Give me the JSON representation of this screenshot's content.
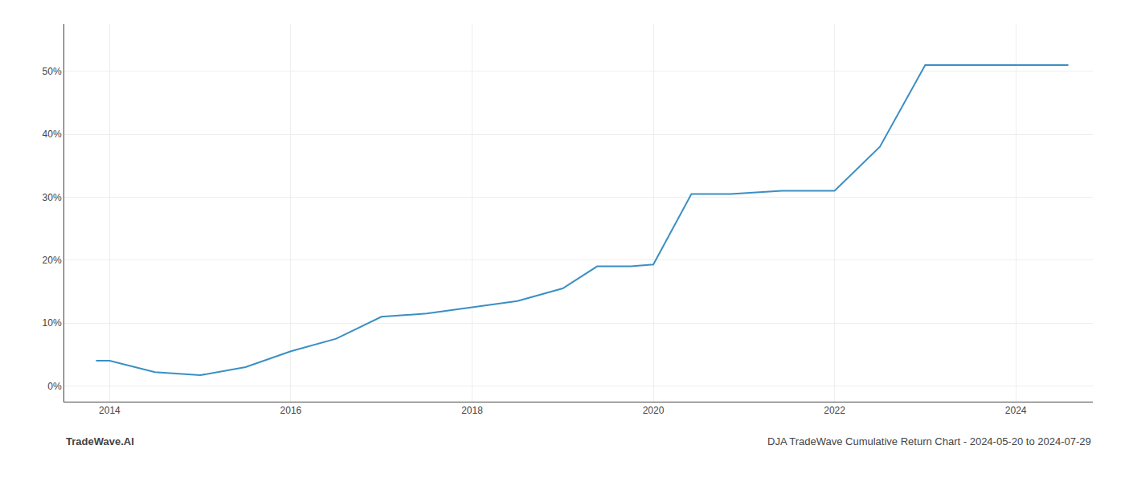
{
  "chart_data": {
    "type": "line",
    "x": [
      2013.85,
      2014.0,
      2014.5,
      2015.0,
      2015.5,
      2016.0,
      2016.5,
      2017.0,
      2017.5,
      2018.0,
      2018.5,
      2019.0,
      2019.38,
      2019.75,
      2020.0,
      2020.42,
      2020.85,
      2021.42,
      2022.0,
      2022.5,
      2023.0,
      2023.5,
      2024.0,
      2024.58
    ],
    "values": [
      0.04,
      0.04,
      0.022,
      0.017,
      0.03,
      0.055,
      0.075,
      0.11,
      0.115,
      0.125,
      0.135,
      0.155,
      0.19,
      0.19,
      0.193,
      0.305,
      0.305,
      0.31,
      0.31,
      0.38,
      0.51,
      0.51,
      0.51,
      0.51
    ],
    "color": "#3a8fc4",
    "xlim": [
      2013.5,
      2024.85
    ],
    "xticks": [
      2014,
      2016,
      2018,
      2020,
      2022,
      2024
    ],
    "ylim": [
      -0.025,
      0.575
    ],
    "yticks": [
      {
        "value": 0.0,
        "label": "0%"
      },
      {
        "value": 0.1,
        "label": "10%"
      },
      {
        "value": 0.2,
        "label": "20%"
      },
      {
        "value": 0.3,
        "label": "30%"
      },
      {
        "value": 0.4,
        "label": "40%"
      },
      {
        "value": 0.5,
        "label": "50%"
      }
    ],
    "grid": true,
    "annotations": [
      "TradeWave.AI",
      "DJA TradeWave Cumulative Return Chart - 2024-05-20 to 2024-07-29"
    ]
  }
}
